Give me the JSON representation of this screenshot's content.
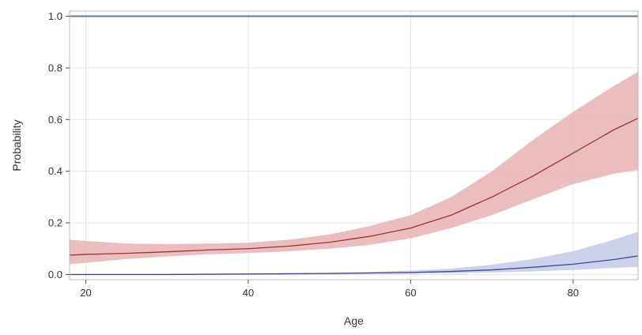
{
  "chart_data": {
    "type": "line",
    "xlabel": "Age",
    "ylabel": "Probability",
    "xlim": [
      18,
      88
    ],
    "ylim": [
      -0.02,
      1.02
    ],
    "xticks": [
      20,
      40,
      60,
      80
    ],
    "xtick_labels": [
      "20",
      "40",
      "60",
      "80"
    ],
    "yticks": [
      0.0,
      0.2,
      0.4,
      0.6,
      0.8,
      1.0
    ],
    "ytick_labels": [
      "0.0",
      "0.2",
      "0.4",
      "0.6",
      "0.8",
      "1.0"
    ],
    "grid": true,
    "series": [
      {
        "color": "#4f8090",
        "band_color": "",
        "x": [
          18,
          88
        ],
        "y": [
          1.0,
          1.0
        ],
        "lower": [],
        "upper": []
      },
      {
        "color": "#a03030",
        "band_color": "#e8b3b3",
        "x": [
          18,
          20,
          25,
          30,
          35,
          40,
          45,
          50,
          55,
          60,
          65,
          70,
          75,
          80,
          85,
          88
        ],
        "y": [
          0.075,
          0.078,
          0.082,
          0.088,
          0.095,
          0.1,
          0.11,
          0.125,
          0.148,
          0.18,
          0.23,
          0.3,
          0.38,
          0.47,
          0.56,
          0.605
        ],
        "lower": [
          0.04,
          0.045,
          0.06,
          0.07,
          0.078,
          0.083,
          0.09,
          0.1,
          0.115,
          0.14,
          0.18,
          0.23,
          0.29,
          0.35,
          0.39,
          0.405
        ],
        "upper": [
          0.135,
          0.13,
          0.12,
          0.118,
          0.12,
          0.123,
          0.135,
          0.155,
          0.188,
          0.23,
          0.3,
          0.4,
          0.52,
          0.63,
          0.73,
          0.785
        ]
      },
      {
        "color": "#3a4a90",
        "band_color": "#c2cbe6",
        "x": [
          18,
          20,
          30,
          40,
          50,
          55,
          60,
          65,
          70,
          75,
          80,
          85,
          88
        ],
        "y": [
          0.0,
          0.0,
          0.0,
          0.002,
          0.004,
          0.006,
          0.008,
          0.012,
          0.018,
          0.028,
          0.04,
          0.058,
          0.072
        ],
        "lower": [
          0.0,
          0.0,
          0.0,
          0.0,
          0.001,
          0.002,
          0.003,
          0.005,
          0.008,
          0.012,
          0.018,
          0.025,
          0.03
        ],
        "upper": [
          0.001,
          0.001,
          0.002,
          0.004,
          0.007,
          0.01,
          0.015,
          0.023,
          0.038,
          0.06,
          0.09,
          0.135,
          0.165
        ]
      }
    ]
  }
}
